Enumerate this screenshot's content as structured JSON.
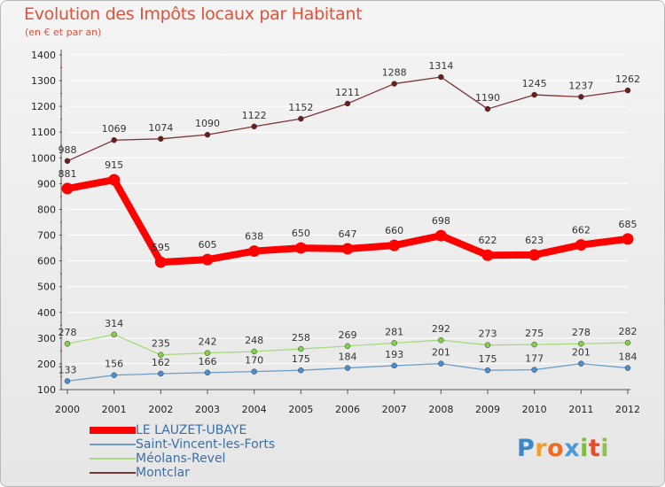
{
  "title": "Evolution des Impôts locaux par Habitant",
  "subtitle": "(en € et par an)",
  "logo": {
    "text": "Proxiti",
    "letters": [
      "P",
      "r",
      "o",
      "x",
      "i",
      "t",
      "i"
    ],
    "colors": [
      "#3f86c8",
      "#f4a024",
      "#ef6b22",
      "#4c9ad6",
      "#7fb93f",
      "#e84a2d",
      "#8bc34a"
    ]
  },
  "chart_data": {
    "type": "line",
    "x": [
      "2000",
      "2001",
      "2002",
      "2003",
      "2004",
      "2005",
      "2006",
      "2007",
      "2008",
      "2009",
      "2010",
      "2011",
      "2012"
    ],
    "ylim": [
      100,
      1400
    ],
    "yticks": [
      100,
      200,
      300,
      400,
      500,
      600,
      700,
      800,
      900,
      1000,
      1100,
      1200,
      1300,
      1400
    ],
    "grid": true,
    "legend_position": "bottom-left",
    "series": [
      {
        "name": "LE LAUZET-UBAYE",
        "color": "#ff0000",
        "point_color": "#ff0000",
        "bold": true,
        "values": [
          881,
          915,
          595,
          605,
          638,
          650,
          647,
          660,
          698,
          622,
          623,
          662,
          685
        ]
      },
      {
        "name": "Saint-Vincent-les-Forts",
        "color": "#6d9ecb",
        "point_color": "#4a8fd0",
        "bold": false,
        "values": [
          133,
          156,
          162,
          166,
          170,
          175,
          184,
          193,
          201,
          175,
          177,
          201,
          184
        ]
      },
      {
        "name": "Méolans-Revel",
        "color": "#a6dc7a",
        "point_color": "#86cf4c",
        "bold": false,
        "values": [
          278,
          314,
          235,
          242,
          248,
          258,
          269,
          281,
          292,
          273,
          275,
          278,
          282
        ]
      },
      {
        "name": "Montclar",
        "color": "#7d3434",
        "point_color": "#6b1e1e",
        "bold": false,
        "values": [
          988,
          1069,
          1074,
          1090,
          1122,
          1152,
          1211,
          1288,
          1314,
          1190,
          1245,
          1237,
          1262
        ]
      }
    ]
  }
}
